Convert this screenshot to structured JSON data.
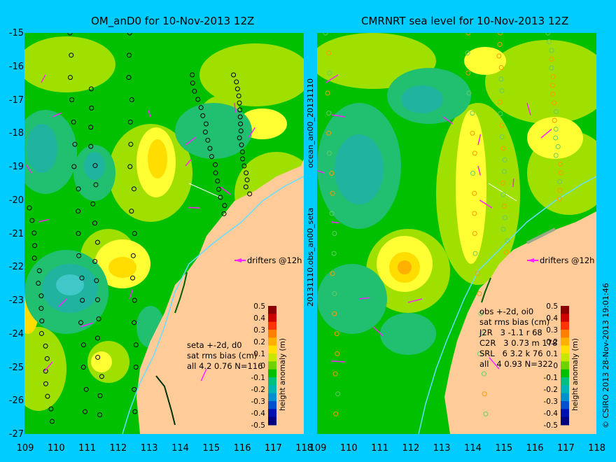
{
  "titles": {
    "left": "OM_anD0 for 10-Nov-2013 12Z",
    "right": "CMRNRT sea level  for 10-Nov-2013 12Z"
  },
  "y_ticks": [
    "-15",
    "-16",
    "-17",
    "-18",
    "-19",
    "-20",
    "-21",
    "-22",
    "-23",
    "-24",
    "-25",
    "-26",
    "-27"
  ],
  "x_ticks": [
    "109",
    "110",
    "111",
    "112",
    "113",
    "114",
    "115",
    "116",
    "117",
    "118"
  ],
  "x_ticks_right": [
    "109",
    "110",
    "111",
    "112",
    "113",
    "114",
    "115",
    "116",
    "117",
    "118"
  ],
  "left_panel": {
    "drifters_label": "drifters @12h",
    "stats_lines": [
      "seta +-2d, d0",
      "sat rms bias (cm)",
      "all 4.2 0.76 N=116"
    ]
  },
  "right_panel": {
    "drifters_label": "drifters @12h",
    "stats_lines": [
      "obs +-2d, oi0",
      "sat rms bias (cm)",
      "J2R   3 -1.1 r 68",
      "C2R   3 0.73 m 178",
      "SRL   6 3.2 k 76",
      "all   4 0.93 N=322"
    ]
  },
  "separator_labels": {
    "top": "ocean_an00_20131110",
    "bottom": "20131110.obs_an00_seta"
  },
  "colorbar": {
    "ticks": [
      "0.5",
      "0.4",
      "0.3",
      "0.2",
      "0.1",
      "0",
      "-0.1",
      "-0.2",
      "-0.3",
      "-0.4",
      "-0.5"
    ],
    "label": "height anomaly (m)",
    "colors": [
      "#8b0000",
      "#cc0000",
      "#ff3300",
      "#ff8000",
      "#ffb000",
      "#ffe000",
      "#c8e600",
      "#70d000",
      "#00c000",
      "#00c080",
      "#00b4b4",
      "#0090d0",
      "#0050d0",
      "#0010b0",
      "#000080"
    ]
  },
  "credit": "© CSIRO 2013   28-Nov-2013 19:01:46",
  "colors": {
    "background": "#00ccff",
    "land": "#ffcc99",
    "drifter": "#ff22ff",
    "green": "#00c000",
    "yellow_green": "#a0e000",
    "cyan_low": "#20b4a0"
  }
}
